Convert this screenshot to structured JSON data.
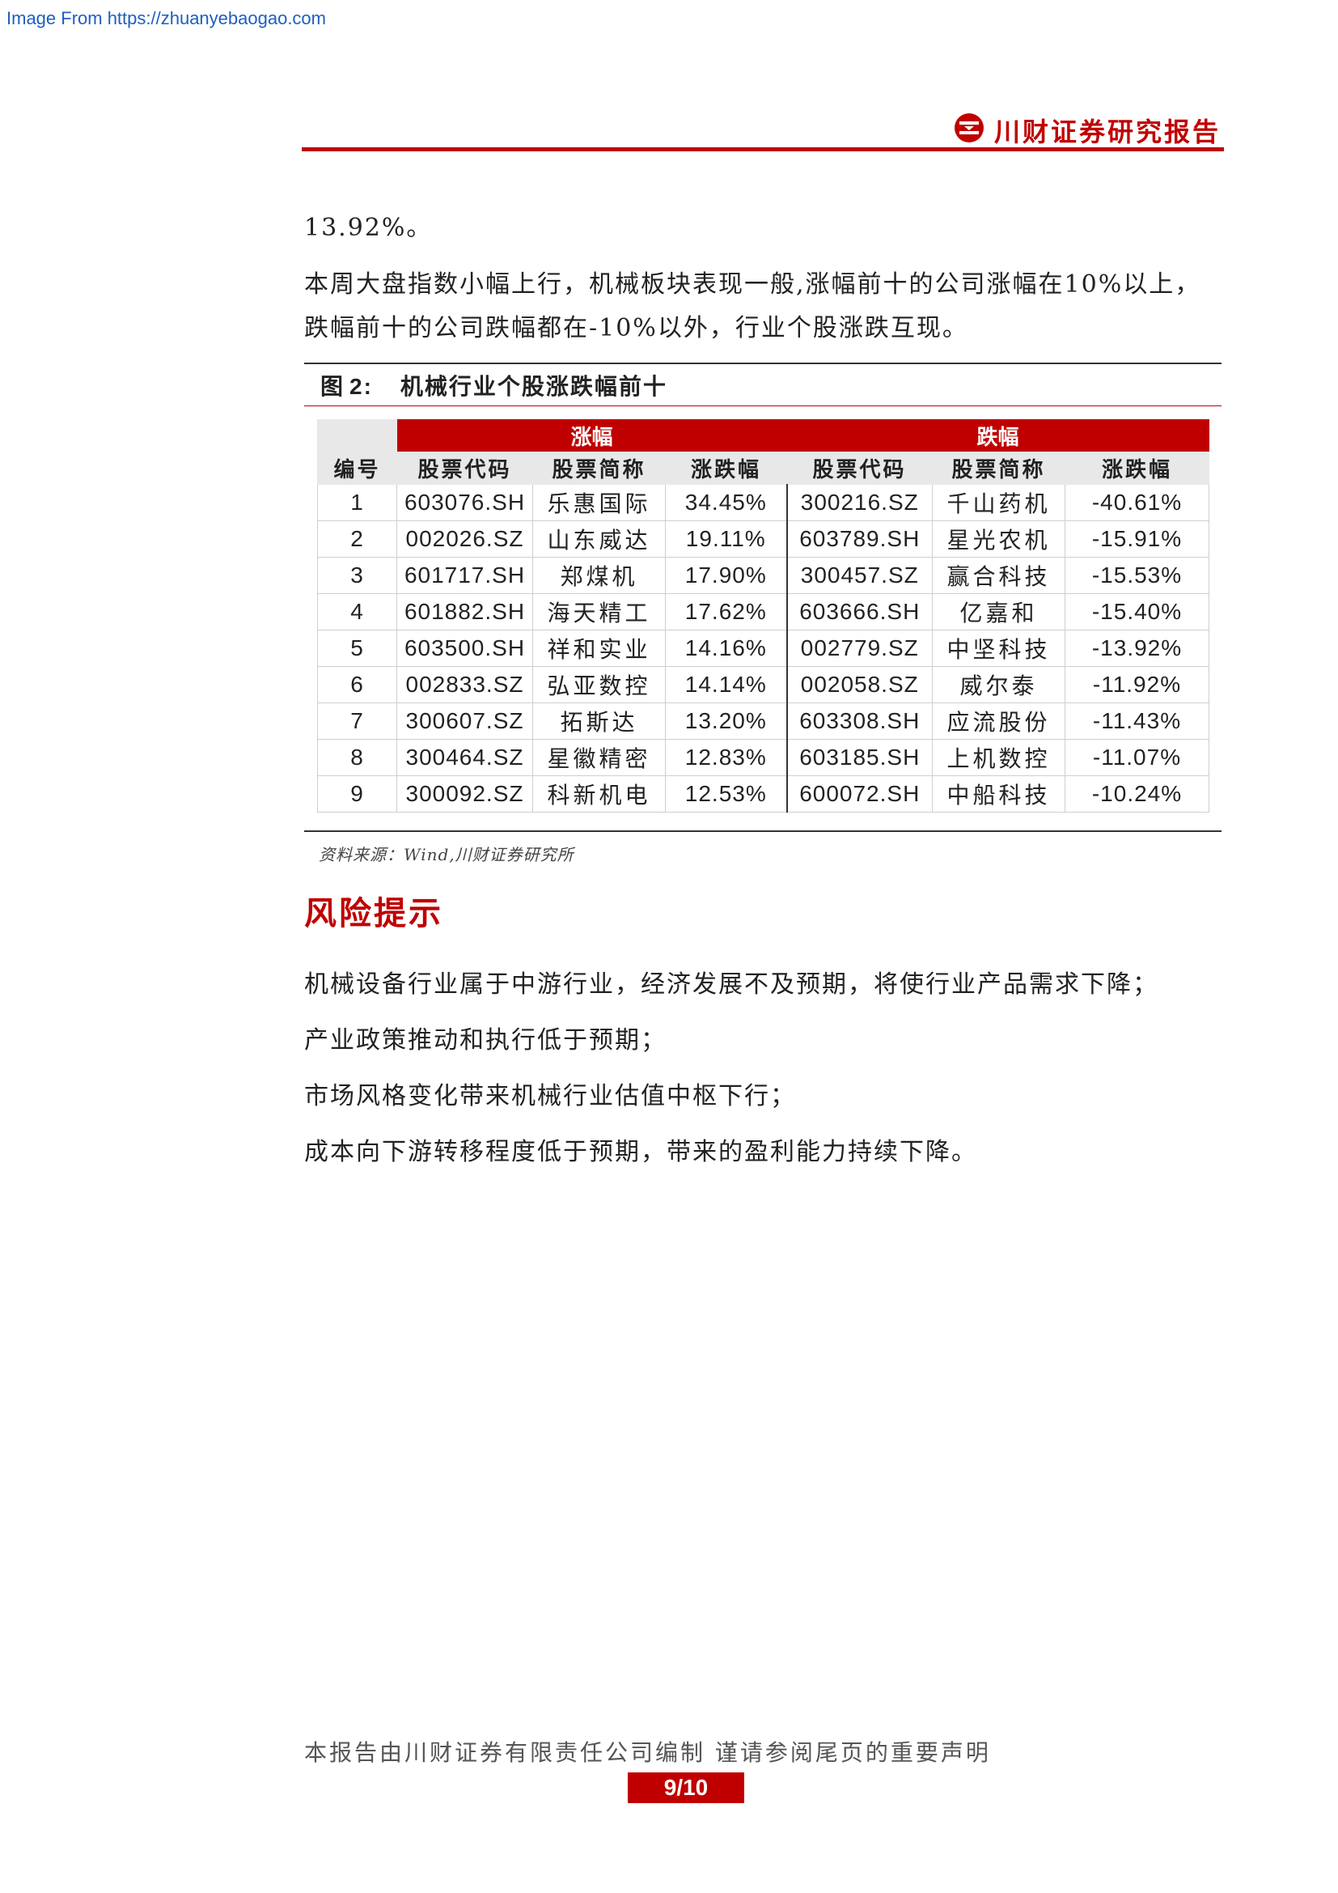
{
  "watermark": "Image From https://zhuanyebaogao.com",
  "header": {
    "brand": "川财证券研究报告"
  },
  "paragraphs": {
    "p1": "13.92%。",
    "p2": "本周大盘指数小幅上行，机械板块表现一般,涨幅前十的公司涨幅在10%以上，跌幅前十的公司跌幅都在-10%以外，行业个股涨跌互现。"
  },
  "figure": {
    "label": "图",
    "number": "2:",
    "title": "机械行业个股涨跌幅前十",
    "group_headers": {
      "gain": "涨幅",
      "loss": "跌幅"
    },
    "columns": {
      "index": "编号",
      "code": "股票代码",
      "name": "股票简称",
      "change": "涨跌幅"
    },
    "rows": [
      {
        "idx": "1",
        "gain_code": "603076.SH",
        "gain_name": "乐惠国际",
        "gain_pct": "34.45%",
        "loss_code": "300216.SZ",
        "loss_name": "千山药机",
        "loss_pct": "-40.61%"
      },
      {
        "idx": "2",
        "gain_code": "002026.SZ",
        "gain_name": "山东威达",
        "gain_pct": "19.11%",
        "loss_code": "603789.SH",
        "loss_name": "星光农机",
        "loss_pct": "-15.91%"
      },
      {
        "idx": "3",
        "gain_code": "601717.SH",
        "gain_name": "郑煤机",
        "gain_pct": "17.90%",
        "loss_code": "300457.SZ",
        "loss_name": "赢合科技",
        "loss_pct": "-15.53%"
      },
      {
        "idx": "4",
        "gain_code": "601882.SH",
        "gain_name": "海天精工",
        "gain_pct": "17.62%",
        "loss_code": "603666.SH",
        "loss_name": "亿嘉和",
        "loss_pct": "-15.40%"
      },
      {
        "idx": "5",
        "gain_code": "603500.SH",
        "gain_name": "祥和实业",
        "gain_pct": "14.16%",
        "loss_code": "002779.SZ",
        "loss_name": "中坚科技",
        "loss_pct": "-13.92%"
      },
      {
        "idx": "6",
        "gain_code": "002833.SZ",
        "gain_name": "弘亚数控",
        "gain_pct": "14.14%",
        "loss_code": "002058.SZ",
        "loss_name": "威尔泰",
        "loss_pct": "-11.92%"
      },
      {
        "idx": "7",
        "gain_code": "300607.SZ",
        "gain_name": "拓斯达",
        "gain_pct": "13.20%",
        "loss_code": "603308.SH",
        "loss_name": "应流股份",
        "loss_pct": "-11.43%"
      },
      {
        "idx": "8",
        "gain_code": "300464.SZ",
        "gain_name": "星徽精密",
        "gain_pct": "12.83%",
        "loss_code": "603185.SH",
        "loss_name": "上机数控",
        "loss_pct": "-11.07%"
      },
      {
        "idx": "9",
        "gain_code": "300092.SZ",
        "gain_name": "科新机电",
        "gain_pct": "12.53%",
        "loss_code": "600072.SH",
        "loss_name": "中船科技",
        "loss_pct": "-10.24%"
      }
    ],
    "source": "资料来源：Wind,川财证券研究所"
  },
  "risk": {
    "title": "风险提示",
    "items": [
      "机械设备行业属于中游行业，经济发展不及预期，将使行业产品需求下降；",
      "产业政策推动和执行低于预期；",
      "市场风格变化带来机械行业估值中枢下行；",
      "成本向下游转移程度低于预期，带来的盈利能力持续下降。"
    ]
  },
  "footer": {
    "note": "本报告由川财证券有限责任公司编制 谨请参阅尾页的重要声明",
    "page": "9/10"
  },
  "colors": {
    "brand_red": "#c00000",
    "link_blue": "#1f5fbf",
    "header_gray": "#e8e8e8"
  }
}
